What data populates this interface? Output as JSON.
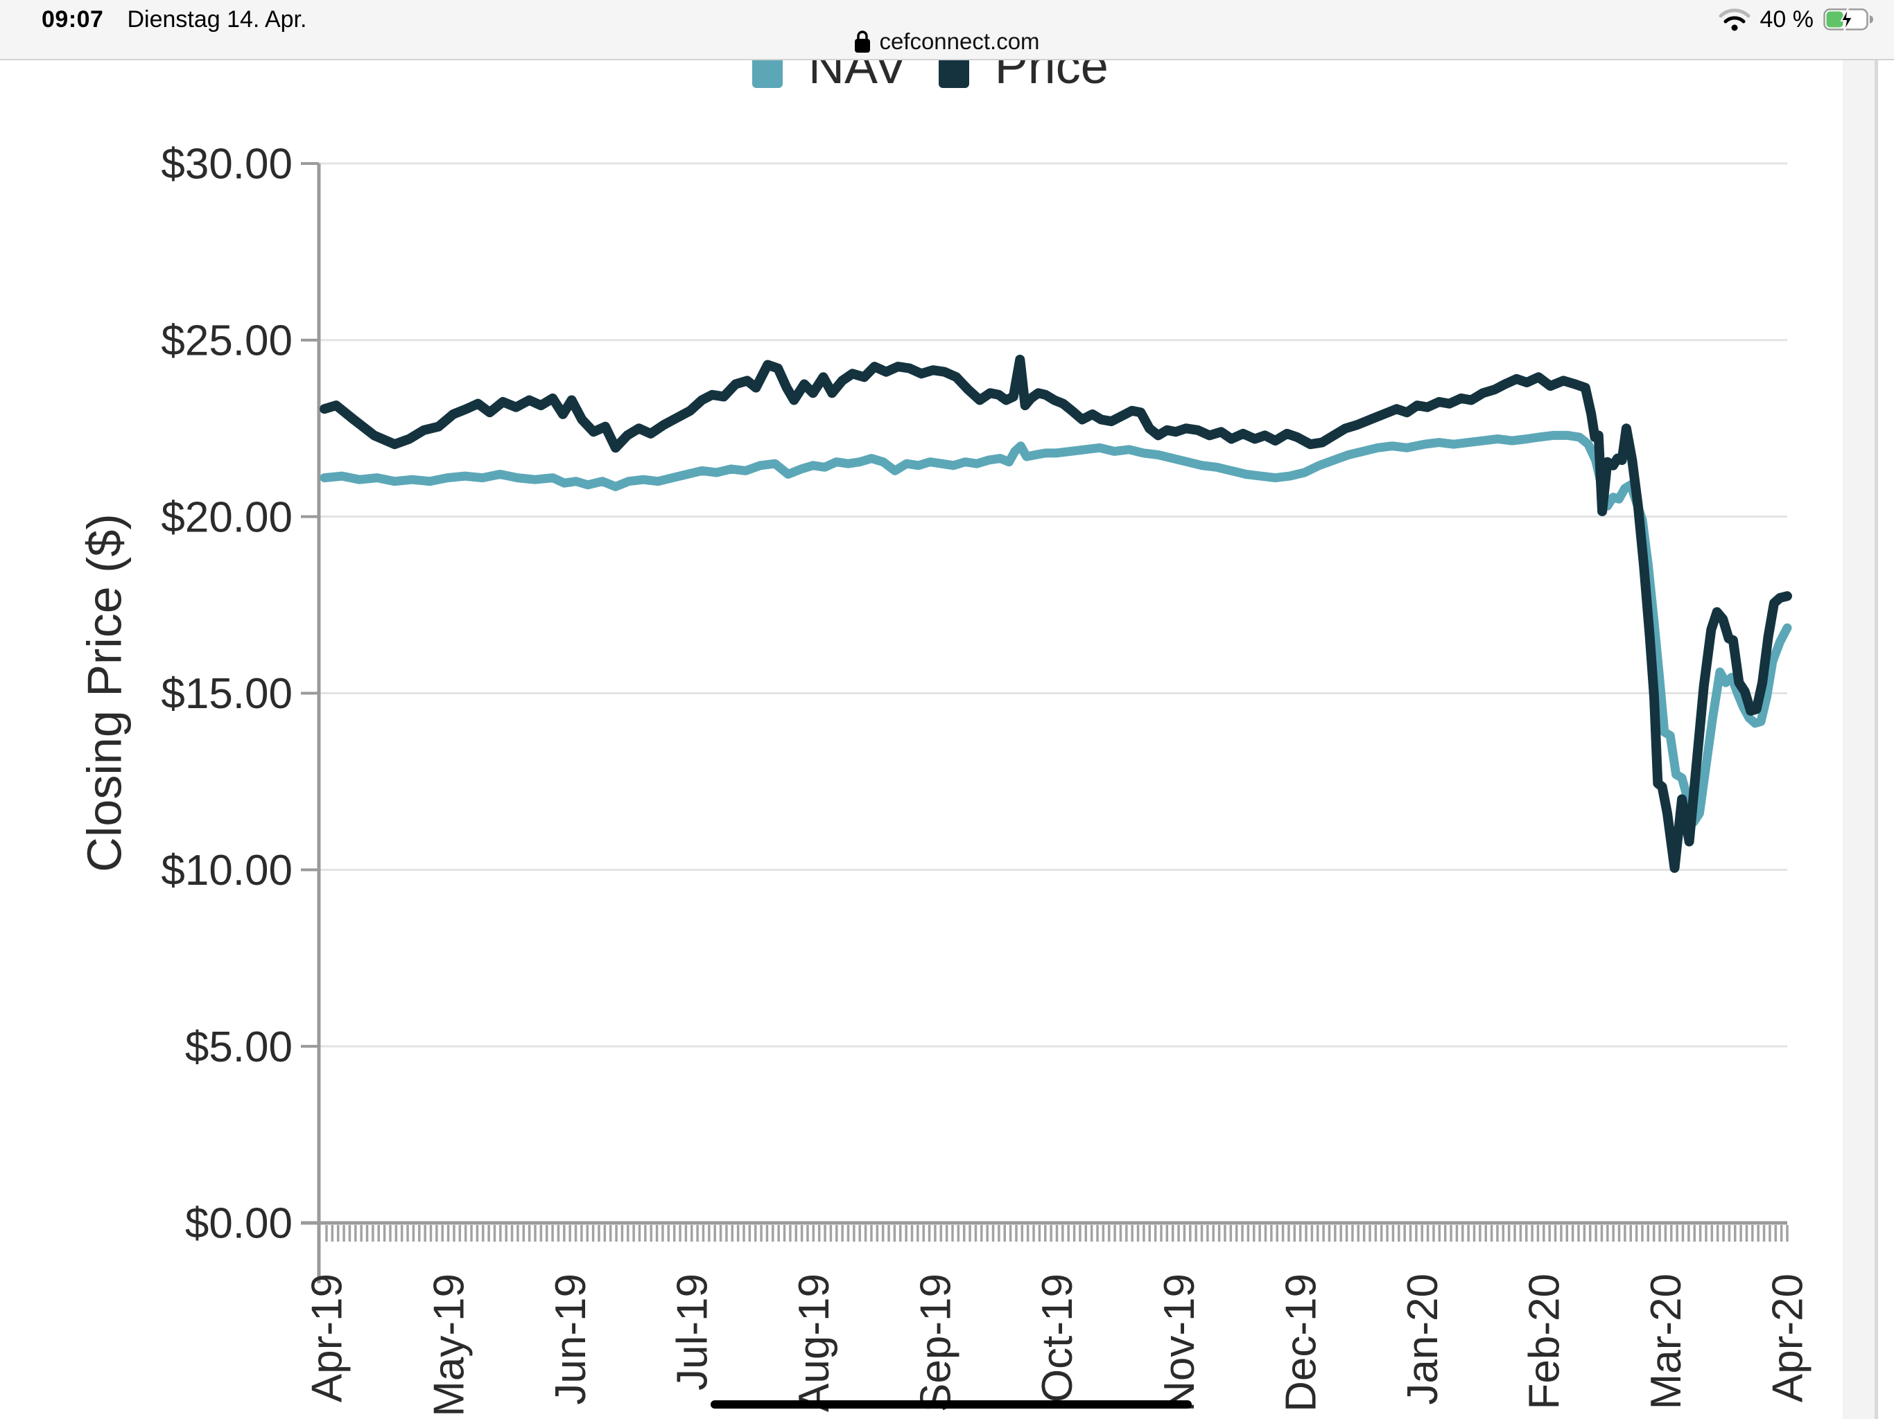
{
  "status_bar": {
    "time": "09:07",
    "date": "Dienstag 14. Apr.",
    "url": "cefconnect.com",
    "battery_text": "40 %",
    "battery_level": 0.4,
    "charging": true
  },
  "legend": {
    "items": [
      {
        "label": "NAV",
        "color": "#5CA7B7"
      },
      {
        "label": "Price",
        "color": "#14333F"
      }
    ]
  },
  "chart_data": {
    "type": "line",
    "title": "",
    "ylabel": "Closing Price ($)",
    "ylim": [
      0,
      30
    ],
    "grid": true,
    "legend_position": "top",
    "y_ticks": [
      {
        "value": 30,
        "label": "$30.00"
      },
      {
        "value": 25,
        "label": "$25.00"
      },
      {
        "value": 20,
        "label": "$20.00"
      },
      {
        "value": 15,
        "label": "$15.00"
      },
      {
        "value": 10,
        "label": "$10.00"
      },
      {
        "value": 5,
        "label": "$5.00"
      },
      {
        "value": 0,
        "label": "$0.00"
      }
    ],
    "x_labels": [
      "Apr-19",
      "May-19",
      "Jun-19",
      "Jul-19",
      "Aug-19",
      "Sep-19",
      "Oct-19",
      "Nov-19",
      "Dec-19",
      "Jan-20",
      "Feb-20",
      "Mar-20",
      "Apr-20"
    ],
    "x_minor_tick_count": 252,
    "series": [
      {
        "name": "NAV",
        "color": "#5CA7B7",
        "points": [
          [
            0.0,
            21.1
          ],
          [
            0.012,
            21.15
          ],
          [
            0.024,
            21.05
          ],
          [
            0.036,
            21.1
          ],
          [
            0.048,
            21.0
          ],
          [
            0.06,
            21.05
          ],
          [
            0.072,
            21.0
          ],
          [
            0.084,
            21.1
          ],
          [
            0.096,
            21.15
          ],
          [
            0.108,
            21.1
          ],
          [
            0.12,
            21.2
          ],
          [
            0.132,
            21.1
          ],
          [
            0.144,
            21.05
          ],
          [
            0.156,
            21.1
          ],
          [
            0.164,
            20.95
          ],
          [
            0.172,
            21.0
          ],
          [
            0.18,
            20.9
          ],
          [
            0.19,
            21.0
          ],
          [
            0.199,
            20.85
          ],
          [
            0.208,
            21.0
          ],
          [
            0.218,
            21.05
          ],
          [
            0.228,
            21.0
          ],
          [
            0.238,
            21.1
          ],
          [
            0.248,
            21.2
          ],
          [
            0.258,
            21.3
          ],
          [
            0.268,
            21.25
          ],
          [
            0.278,
            21.35
          ],
          [
            0.288,
            21.3
          ],
          [
            0.298,
            21.45
          ],
          [
            0.308,
            21.5
          ],
          [
            0.317,
            21.2
          ],
          [
            0.326,
            21.35
          ],
          [
            0.334,
            21.45
          ],
          [
            0.342,
            21.4
          ],
          [
            0.35,
            21.55
          ],
          [
            0.358,
            21.5
          ],
          [
            0.366,
            21.55
          ],
          [
            0.374,
            21.65
          ],
          [
            0.382,
            21.55
          ],
          [
            0.39,
            21.3
          ],
          [
            0.398,
            21.5
          ],
          [
            0.406,
            21.45
          ],
          [
            0.414,
            21.55
          ],
          [
            0.422,
            21.5
          ],
          [
            0.43,
            21.45
          ],
          [
            0.438,
            21.55
          ],
          [
            0.446,
            21.5
          ],
          [
            0.454,
            21.6
          ],
          [
            0.462,
            21.65
          ],
          [
            0.468,
            21.55
          ],
          [
            0.472,
            21.85
          ],
          [
            0.476,
            22.0
          ],
          [
            0.48,
            21.7
          ],
          [
            0.486,
            21.75
          ],
          [
            0.493,
            21.8
          ],
          [
            0.5,
            21.8
          ],
          [
            0.51,
            21.85
          ],
          [
            0.52,
            21.9
          ],
          [
            0.53,
            21.95
          ],
          [
            0.54,
            21.85
          ],
          [
            0.55,
            21.9
          ],
          [
            0.56,
            21.8
          ],
          [
            0.57,
            21.75
          ],
          [
            0.58,
            21.65
          ],
          [
            0.59,
            21.55
          ],
          [
            0.6,
            21.45
          ],
          [
            0.61,
            21.4
          ],
          [
            0.62,
            21.3
          ],
          [
            0.63,
            21.2
          ],
          [
            0.64,
            21.15
          ],
          [
            0.65,
            21.1
          ],
          [
            0.66,
            21.15
          ],
          [
            0.67,
            21.25
          ],
          [
            0.68,
            21.45
          ],
          [
            0.69,
            21.6
          ],
          [
            0.7,
            21.75
          ],
          [
            0.71,
            21.85
          ],
          [
            0.72,
            21.95
          ],
          [
            0.73,
            22.0
          ],
          [
            0.74,
            21.95
          ],
          [
            0.752,
            22.05
          ],
          [
            0.762,
            22.1
          ],
          [
            0.772,
            22.05
          ],
          [
            0.782,
            22.1
          ],
          [
            0.792,
            22.15
          ],
          [
            0.802,
            22.2
          ],
          [
            0.812,
            22.15
          ],
          [
            0.822,
            22.2
          ],
          [
            0.83,
            22.25
          ],
          [
            0.84,
            22.3
          ],
          [
            0.85,
            22.3
          ],
          [
            0.858,
            22.25
          ],
          [
            0.864,
            22.05
          ],
          [
            0.869,
            21.6
          ],
          [
            0.873,
            20.9
          ],
          [
            0.877,
            20.3
          ],
          [
            0.881,
            20.55
          ],
          [
            0.885,
            20.5
          ],
          [
            0.889,
            20.8
          ],
          [
            0.893,
            20.9
          ],
          [
            0.897,
            20.4
          ],
          [
            0.901,
            19.9
          ],
          [
            0.905,
            18.6
          ],
          [
            0.909,
            17.0
          ],
          [
            0.9125,
            15.5
          ],
          [
            0.916,
            13.9
          ],
          [
            0.92,
            13.8
          ],
          [
            0.924,
            12.7
          ],
          [
            0.928,
            12.6
          ],
          [
            0.932,
            12.0
          ],
          [
            0.936,
            11.35
          ],
          [
            0.94,
            11.6
          ],
          [
            0.944,
            12.8
          ],
          [
            0.949,
            14.3
          ],
          [
            0.954,
            15.6
          ],
          [
            0.958,
            15.3
          ],
          [
            0.962,
            15.45
          ],
          [
            0.966,
            15.0
          ],
          [
            0.97,
            14.6
          ],
          [
            0.974,
            14.3
          ],
          [
            0.978,
            14.15
          ],
          [
            0.982,
            14.2
          ],
          [
            0.986,
            14.9
          ],
          [
            0.99,
            15.9
          ],
          [
            0.995,
            16.45
          ],
          [
            1.0,
            16.85
          ]
        ]
      },
      {
        "name": "Price",
        "color": "#14333F",
        "points": [
          [
            0.0,
            23.05
          ],
          [
            0.008,
            23.15
          ],
          [
            0.02,
            22.75
          ],
          [
            0.034,
            22.3
          ],
          [
            0.048,
            22.05
          ],
          [
            0.058,
            22.2
          ],
          [
            0.068,
            22.45
          ],
          [
            0.078,
            22.55
          ],
          [
            0.088,
            22.9
          ],
          [
            0.097,
            23.05
          ],
          [
            0.105,
            23.2
          ],
          [
            0.113,
            22.95
          ],
          [
            0.122,
            23.25
          ],
          [
            0.131,
            23.1
          ],
          [
            0.14,
            23.3
          ],
          [
            0.148,
            23.15
          ],
          [
            0.156,
            23.35
          ],
          [
            0.163,
            22.9
          ],
          [
            0.169,
            23.3
          ],
          [
            0.176,
            22.75
          ],
          [
            0.184,
            22.4
          ],
          [
            0.192,
            22.55
          ],
          [
            0.199,
            21.95
          ],
          [
            0.207,
            22.3
          ],
          [
            0.215,
            22.5
          ],
          [
            0.223,
            22.35
          ],
          [
            0.232,
            22.6
          ],
          [
            0.241,
            22.8
          ],
          [
            0.25,
            23.0
          ],
          [
            0.258,
            23.3
          ],
          [
            0.265,
            23.45
          ],
          [
            0.273,
            23.4
          ],
          [
            0.281,
            23.75
          ],
          [
            0.289,
            23.85
          ],
          [
            0.295,
            23.65
          ],
          [
            0.303,
            24.3
          ],
          [
            0.31,
            24.2
          ],
          [
            0.316,
            23.65
          ],
          [
            0.321,
            23.3
          ],
          [
            0.328,
            23.75
          ],
          [
            0.334,
            23.5
          ],
          [
            0.341,
            23.95
          ],
          [
            0.347,
            23.5
          ],
          [
            0.354,
            23.85
          ],
          [
            0.361,
            24.05
          ],
          [
            0.369,
            23.95
          ],
          [
            0.376,
            24.25
          ],
          [
            0.384,
            24.1
          ],
          [
            0.392,
            24.25
          ],
          [
            0.4,
            24.2
          ],
          [
            0.408,
            24.05
          ],
          [
            0.416,
            24.15
          ],
          [
            0.424,
            24.1
          ],
          [
            0.432,
            23.95
          ],
          [
            0.44,
            23.6
          ],
          [
            0.448,
            23.3
          ],
          [
            0.455,
            23.5
          ],
          [
            0.461,
            23.45
          ],
          [
            0.466,
            23.3
          ],
          [
            0.471,
            23.4
          ],
          [
            0.4755,
            24.45
          ],
          [
            0.479,
            23.15
          ],
          [
            0.483,
            23.35
          ],
          [
            0.488,
            23.5
          ],
          [
            0.493,
            23.45
          ],
          [
            0.499,
            23.3
          ],
          [
            0.505,
            23.2
          ],
          [
            0.511,
            23.0
          ],
          [
            0.518,
            22.75
          ],
          [
            0.525,
            22.9
          ],
          [
            0.531,
            22.75
          ],
          [
            0.538,
            22.7
          ],
          [
            0.545,
            22.85
          ],
          [
            0.552,
            23.0
          ],
          [
            0.558,
            22.95
          ],
          [
            0.564,
            22.5
          ],
          [
            0.57,
            22.3
          ],
          [
            0.576,
            22.45
          ],
          [
            0.582,
            22.4
          ],
          [
            0.589,
            22.5
          ],
          [
            0.597,
            22.45
          ],
          [
            0.605,
            22.3
          ],
          [
            0.613,
            22.4
          ],
          [
            0.62,
            22.2
          ],
          [
            0.628,
            22.35
          ],
          [
            0.636,
            22.2
          ],
          [
            0.643,
            22.3
          ],
          [
            0.65,
            22.15
          ],
          [
            0.658,
            22.35
          ],
          [
            0.665,
            22.25
          ],
          [
            0.674,
            22.05
          ],
          [
            0.682,
            22.1
          ],
          [
            0.69,
            22.3
          ],
          [
            0.698,
            22.5
          ],
          [
            0.706,
            22.6
          ],
          [
            0.715,
            22.75
          ],
          [
            0.724,
            22.9
          ],
          [
            0.733,
            23.05
          ],
          [
            0.74,
            22.95
          ],
          [
            0.747,
            23.15
          ],
          [
            0.754,
            23.1
          ],
          [
            0.762,
            23.25
          ],
          [
            0.769,
            23.2
          ],
          [
            0.777,
            23.35
          ],
          [
            0.784,
            23.3
          ],
          [
            0.792,
            23.5
          ],
          [
            0.8,
            23.6
          ],
          [
            0.807,
            23.75
          ],
          [
            0.815,
            23.9
          ],
          [
            0.822,
            23.8
          ],
          [
            0.83,
            23.95
          ],
          [
            0.838,
            23.7
          ],
          [
            0.847,
            23.85
          ],
          [
            0.855,
            23.75
          ],
          [
            0.862,
            23.65
          ],
          [
            0.866,
            22.9
          ],
          [
            0.8685,
            22.25
          ],
          [
            0.871,
            22.3
          ],
          [
            0.8735,
            20.15
          ],
          [
            0.877,
            21.55
          ],
          [
            0.881,
            21.45
          ],
          [
            0.884,
            21.65
          ],
          [
            0.887,
            21.6
          ],
          [
            0.89,
            22.5
          ],
          [
            0.894,
            21.6
          ],
          [
            0.898,
            20.3
          ],
          [
            0.902,
            18.6
          ],
          [
            0.906,
            16.6
          ],
          [
            0.909,
            14.9
          ],
          [
            0.9115,
            12.45
          ],
          [
            0.9145,
            12.35
          ],
          [
            0.918,
            11.6
          ],
          [
            0.923,
            10.05
          ],
          [
            0.928,
            12.0
          ],
          [
            0.933,
            10.8
          ],
          [
            0.938,
            13.0
          ],
          [
            0.943,
            15.2
          ],
          [
            0.948,
            16.8
          ],
          [
            0.952,
            17.3
          ],
          [
            0.956,
            17.1
          ],
          [
            0.96,
            16.55
          ],
          [
            0.963,
            16.5
          ],
          [
            0.967,
            15.3
          ],
          [
            0.971,
            15.05
          ],
          [
            0.975,
            14.5
          ],
          [
            0.979,
            14.55
          ],
          [
            0.983,
            15.3
          ],
          [
            0.987,
            16.6
          ],
          [
            0.991,
            17.55
          ],
          [
            0.995,
            17.7
          ],
          [
            1.0,
            17.75
          ]
        ]
      }
    ]
  }
}
